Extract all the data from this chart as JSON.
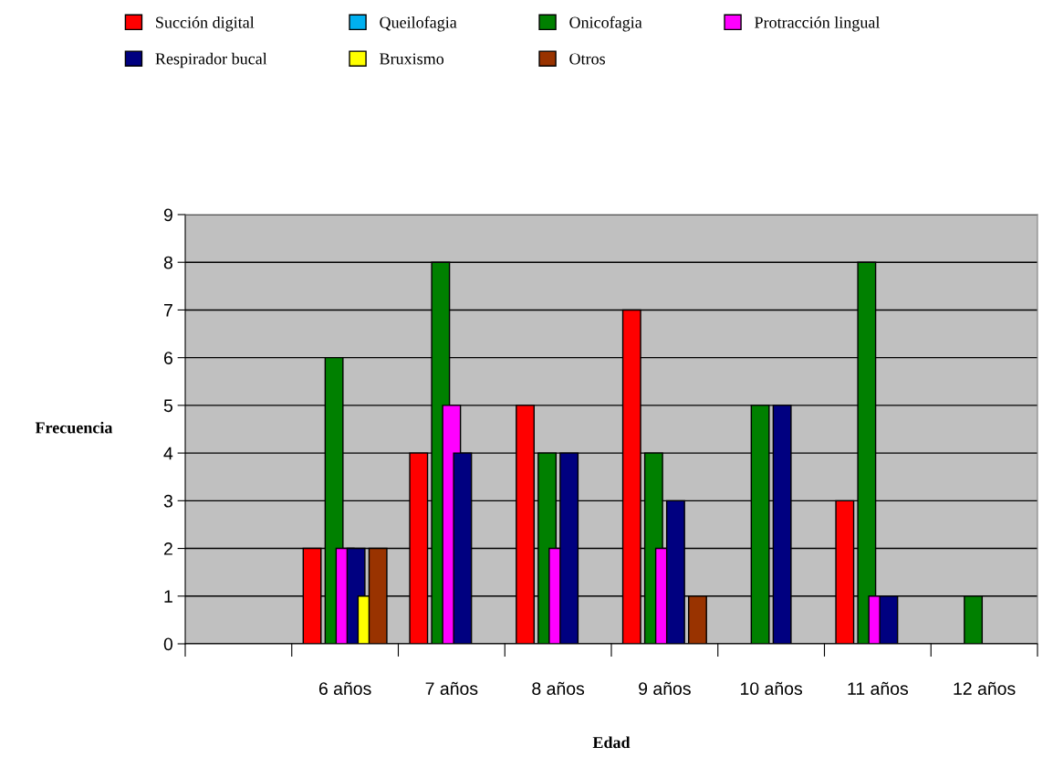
{
  "chart_data": {
    "type": "bar",
    "xlabel": "Edad",
    "ylabel": "Frecuencia",
    "categories": [
      null,
      "6 años",
      "7 años",
      "8 años",
      "9 años",
      "10 años",
      "11 años",
      "12 años"
    ],
    "series": [
      {
        "name": "Succión digital",
        "color": "#ff0000",
        "values": [
          null,
          2,
          4,
          5,
          7,
          null,
          3,
          null
        ]
      },
      {
        "name": "Queilofagia",
        "color": "#00b0f0",
        "values": [
          null,
          null,
          null,
          null,
          null,
          null,
          null,
          null
        ]
      },
      {
        "name": "Onicofagia",
        "color": "#008000",
        "values": [
          null,
          6,
          8,
          4,
          4,
          5,
          8,
          1
        ]
      },
      {
        "name": "Protracción lingual",
        "color": "#ff00ff",
        "values": [
          null,
          2,
          5,
          2,
          2,
          null,
          1,
          null
        ]
      },
      {
        "name": "Respirador bucal",
        "color": "#000080",
        "values": [
          null,
          2,
          4,
          4,
          3,
          5,
          1,
          null
        ]
      },
      {
        "name": "Bruxismo",
        "color": "#ffff00",
        "values": [
          null,
          1,
          null,
          null,
          null,
          null,
          null,
          null
        ]
      },
      {
        "name": "Otros",
        "color": "#993300",
        "values": [
          null,
          2,
          null,
          null,
          1,
          null,
          null,
          null
        ]
      }
    ],
    "ylim": [
      0,
      9
    ],
    "yticks": [
      0,
      1,
      2,
      3,
      4,
      5,
      6,
      7,
      8,
      9
    ],
    "grid": "y",
    "legend": "top"
  }
}
